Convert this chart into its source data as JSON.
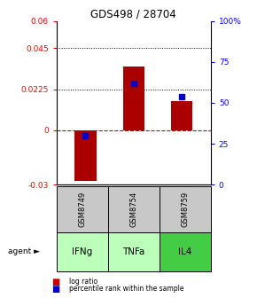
{
  "title": "GDS498 / 28704",
  "samples": [
    "GSM8749",
    "GSM8754",
    "GSM8759"
  ],
  "agents": [
    "IFNg",
    "TNFa",
    "IL4"
  ],
  "log_ratios": [
    -0.028,
    0.035,
    0.016
  ],
  "percentile_ranks": [
    30,
    62,
    54
  ],
  "ylim_left": [
    -0.03,
    0.06
  ],
  "ylim_right": [
    0,
    100
  ],
  "yticks_left": [
    -0.03,
    0,
    0.0225,
    0.045,
    0.06
  ],
  "ytick_labels_left": [
    "-0.03",
    "0",
    "0.0225",
    "0.045",
    "0.06"
  ],
  "yticks_right": [
    0,
    25,
    50,
    75,
    100
  ],
  "ytick_labels_right": [
    "0",
    "25",
    "50",
    "75",
    "100%"
  ],
  "hlines_dotted": [
    0.045,
    0.0225
  ],
  "bar_color": "#aa0000",
  "dot_color": "#0000cc",
  "zero_line_color": "#cc0000",
  "bar_width": 0.45,
  "sample_box_color": "#c8c8c8",
  "agent_colors": [
    "#bbffbb",
    "#bbffbb",
    "#44cc44"
  ],
  "legend_bar_color": "#cc0000",
  "legend_dot_color": "#0000cc"
}
